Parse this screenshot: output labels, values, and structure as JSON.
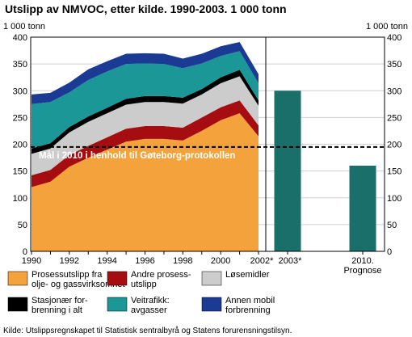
{
  "chart_data": {
    "type": "area",
    "title": "Utslipp av NMVOC, etter kilde. 1990-2003. 1 000 tonn",
    "ylabel_left": "1 000 tonn",
    "ylabel_right": "1 000 tonn",
    "ylim": [
      0,
      400
    ],
    "yticks": [
      0,
      50,
      100,
      150,
      200,
      250,
      300,
      350,
      400
    ],
    "grid": true,
    "stacked": true,
    "x": [
      1990,
      1991,
      1992,
      1993,
      1994,
      1995,
      1996,
      1997,
      1998,
      1999,
      2000,
      2001,
      2002
    ],
    "x_tick_labels": [
      {
        "x": 1990,
        "label": "1990"
      },
      {
        "x": 1992,
        "label": "1992"
      },
      {
        "x": 1994,
        "label": "1994"
      },
      {
        "x": 1996,
        "label": "1996"
      },
      {
        "x": 1998,
        "label": "1998"
      },
      {
        "x": 2000,
        "label": "2000"
      },
      {
        "x": 2002,
        "label": "2002*"
      }
    ],
    "series": [
      {
        "name": "Prosessutslipp fra olje- og gassvirksomhet",
        "color": "#f4a23c",
        "values": [
          120,
          130,
          158,
          175,
          190,
          205,
          210,
          210,
          207,
          225,
          245,
          258,
          215
        ]
      },
      {
        "name": "Andre prosess-utslipp",
        "color": "#a50d10",
        "values": [
          22,
          22,
          22,
          22,
          23,
          24,
          24,
          24,
          24,
          25,
          24,
          24,
          20
        ]
      },
      {
        "name": "Løsemidler",
        "color": "#cccccc",
        "values": [
          40,
          40,
          42,
          45,
          45,
          45,
          45,
          45,
          45,
          43,
          45,
          45,
          37
        ]
      },
      {
        "name": "Stasjonær forbrenning i alt",
        "color": "#000000",
        "values": [
          10,
          10,
          10,
          10,
          10,
          11,
          11,
          11,
          11,
          10,
          11,
          12,
          10
        ]
      },
      {
        "name": "Veitrafikk: avgasser",
        "color": "#1a9796",
        "values": [
          83,
          77,
          65,
          68,
          68,
          65,
          61,
          60,
          55,
          48,
          40,
          35,
          32
        ]
      },
      {
        "name": "Annen mobil forbrenning",
        "color": "#1a3a94",
        "values": [
          18,
          17,
          18,
          20,
          19,
          19,
          19,
          19,
          18,
          18,
          18,
          17,
          17
        ]
      }
    ],
    "bars": [
      {
        "label": "2003*",
        "sublabel": "",
        "value": 300,
        "color": "#1a6f6b"
      },
      {
        "label": "2010.",
        "sublabel": "Prognose",
        "value": 160,
        "color": "#1a6f6b"
      }
    ],
    "target_line": {
      "value": 195,
      "label": "Mål i 2010 i henhold til Gøteborg-protokollen"
    },
    "legend_position": "bottom",
    "legend": [
      {
        "line1": "Prosessutslipp fra",
        "line2": "olje- og gassvirksomhet",
        "color": "#f4a23c"
      },
      {
        "line1": "Andre prosess-",
        "line2": "utslipp",
        "color": "#a50d10"
      },
      {
        "line1": "Løsemidler",
        "line2": "",
        "color": "#cccccc"
      },
      {
        "line1": "Stasjonær for-",
        "line2": "brenning i alt",
        "color": "#000000"
      },
      {
        "line1": "Veitrafikk:",
        "line2": "avgasser",
        "color": "#1a9796"
      },
      {
        "line1": "Annen mobil",
        "line2": "forbrenning",
        "color": "#1a3a94"
      }
    ],
    "source": "Kilde: Utslippsregnskapet til Statistisk sentralbyrå og Statens forurensningstilsyn."
  }
}
